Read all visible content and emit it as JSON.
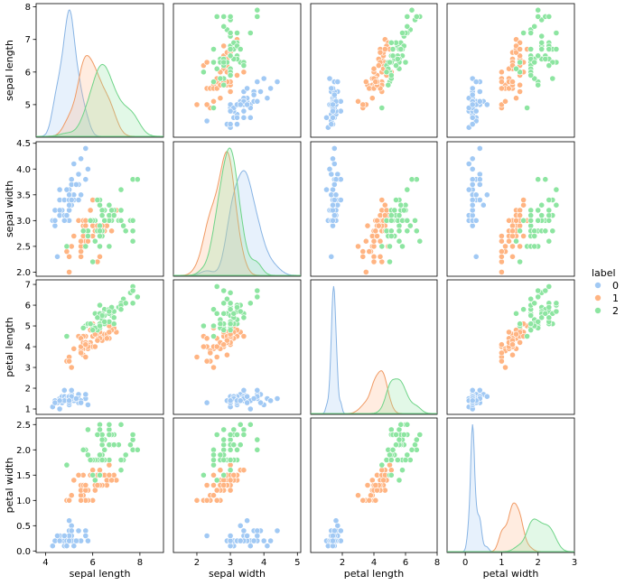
{
  "chart_data": {
    "type": "scatter",
    "title": "",
    "variables": [
      "sepal length",
      "sepal width",
      "petal length",
      "petal width"
    ],
    "diagonal": "kde",
    "legend": {
      "title": "label",
      "placement": "right-center",
      "entries": [
        {
          "name": "0",
          "color": "#a1c9f4"
        },
        {
          "name": "1",
          "color": "#ffb482"
        },
        {
          "name": "2",
          "color": "#8de5a1"
        }
      ]
    },
    "axes": {
      "sepal length": {
        "range": [
          3.6,
          9.0
        ],
        "ticks": [
          4,
          6,
          8
        ],
        "row_range": [
          4.0,
          8.1
        ],
        "row_ticks": [
          5,
          6,
          7,
          8
        ]
      },
      "sepal width": {
        "range": [
          1.3,
          5.1
        ],
        "ticks": [
          2,
          3,
          4,
          5
        ],
        "row_range": [
          1.92,
          4.53
        ],
        "row_ticks": [
          "2.0",
          "2.5",
          "3.0",
          "3.5",
          "4.0",
          "4.5"
        ]
      },
      "petal length": {
        "range": [
          0.0,
          8.0
        ],
        "ticks": [
          2,
          4,
          6,
          8
        ],
        "row_range": [
          0.74,
          7.22
        ],
        "row_ticks": [
          1,
          2,
          3,
          4,
          5,
          6,
          7
        ]
      },
      "petal width": {
        "range": [
          -0.5,
          3.0
        ],
        "ticks": [
          0,
          1,
          2,
          3
        ],
        "row_range": [
          -0.03,
          2.63
        ],
        "row_ticks": [
          "0.0",
          "0.5",
          "1.0",
          "1.5",
          "2.0",
          "2.5"
        ]
      }
    },
    "series": [
      {
        "name": "0",
        "sepal_length": [
          5.1,
          4.9,
          4.7,
          4.6,
          5.0,
          5.4,
          4.6,
          5.0,
          4.4,
          4.9,
          5.4,
          4.8,
          4.8,
          4.3,
          5.8,
          5.7,
          5.4,
          5.1,
          5.7,
          5.1,
          5.4,
          5.1,
          4.6,
          5.1,
          4.8,
          5.0,
          5.0,
          5.2,
          5.2,
          4.7,
          4.8,
          5.4,
          5.2,
          5.5,
          4.9,
          5.0,
          5.5,
          4.9,
          4.4,
          5.1,
          5.0,
          4.5,
          4.4,
          5.0,
          5.1,
          4.8,
          5.1,
          4.6,
          5.3,
          5.0
        ],
        "sepal_width": [
          3.5,
          3.0,
          3.2,
          3.1,
          3.6,
          3.9,
          3.4,
          3.4,
          2.9,
          3.1,
          3.7,
          3.4,
          3.0,
          3.0,
          4.0,
          4.4,
          3.9,
          3.5,
          3.8,
          3.8,
          3.4,
          3.7,
          3.6,
          3.3,
          3.4,
          3.0,
          3.4,
          3.5,
          3.4,
          3.2,
          3.1,
          3.4,
          4.1,
          4.2,
          3.1,
          3.2,
          3.5,
          3.6,
          3.0,
          3.4,
          3.5,
          2.3,
          3.2,
          3.5,
          3.8,
          3.0,
          3.8,
          3.2,
          3.7,
          3.3
        ],
        "petal_length": [
          1.4,
          1.4,
          1.3,
          1.5,
          1.4,
          1.7,
          1.4,
          1.5,
          1.4,
          1.5,
          1.5,
          1.6,
          1.4,
          1.1,
          1.2,
          1.5,
          1.3,
          1.4,
          1.7,
          1.5,
          1.7,
          1.5,
          1.0,
          1.7,
          1.9,
          1.6,
          1.6,
          1.5,
          1.4,
          1.6,
          1.6,
          1.5,
          1.5,
          1.4,
          1.5,
          1.2,
          1.3,
          1.4,
          1.3,
          1.5,
          1.3,
          1.3,
          1.3,
          1.6,
          1.9,
          1.4,
          1.6,
          1.4,
          1.5,
          1.4
        ],
        "petal_width": [
          0.2,
          0.2,
          0.2,
          0.2,
          0.2,
          0.4,
          0.3,
          0.2,
          0.2,
          0.1,
          0.2,
          0.2,
          0.1,
          0.1,
          0.2,
          0.4,
          0.4,
          0.3,
          0.3,
          0.3,
          0.2,
          0.4,
          0.2,
          0.5,
          0.2,
          0.2,
          0.4,
          0.2,
          0.2,
          0.2,
          0.2,
          0.4,
          0.1,
          0.2,
          0.2,
          0.2,
          0.2,
          0.1,
          0.2,
          0.2,
          0.3,
          0.3,
          0.2,
          0.6,
          0.4,
          0.3,
          0.2,
          0.2,
          0.2,
          0.2
        ]
      },
      {
        "name": "1",
        "sepal_length": [
          7.0,
          6.4,
          6.9,
          5.5,
          6.5,
          5.7,
          6.3,
          4.9,
          6.6,
          5.2,
          5.0,
          5.9,
          6.0,
          6.1,
          5.6,
          6.7,
          5.6,
          5.8,
          6.2,
          5.6,
          5.9,
          6.1,
          6.3,
          6.1,
          6.4,
          6.6,
          6.8,
          6.7,
          6.0,
          5.7,
          5.5,
          5.5,
          5.8,
          6.0,
          5.4,
          6.0,
          6.7,
          6.3,
          5.6,
          5.5,
          5.5,
          6.1,
          5.8,
          5.0,
          5.6,
          5.7,
          5.7,
          6.2,
          5.1,
          5.7
        ],
        "sepal_width": [
          3.2,
          3.2,
          3.1,
          2.3,
          2.8,
          2.8,
          3.3,
          2.4,
          2.9,
          2.7,
          2.0,
          3.0,
          2.2,
          2.9,
          2.9,
          3.1,
          3.0,
          2.7,
          2.2,
          2.5,
          3.2,
          2.8,
          2.5,
          2.8,
          2.9,
          3.0,
          2.8,
          3.0,
          2.9,
          2.6,
          2.4,
          2.4,
          2.7,
          2.7,
          3.0,
          3.4,
          3.1,
          2.3,
          3.0,
          2.5,
          2.6,
          3.0,
          2.6,
          2.3,
          2.7,
          3.0,
          2.9,
          2.9,
          2.5,
          2.8
        ],
        "petal_length": [
          4.7,
          4.5,
          4.9,
          4.0,
          4.6,
          4.5,
          4.7,
          3.3,
          4.6,
          3.9,
          3.5,
          4.2,
          4.0,
          4.7,
          3.6,
          4.4,
          4.5,
          4.1,
          4.5,
          3.9,
          4.8,
          4.0,
          4.9,
          4.7,
          4.3,
          4.4,
          4.8,
          5.0,
          4.5,
          3.5,
          3.8,
          3.7,
          3.9,
          5.1,
          4.5,
          4.5,
          4.7,
          4.4,
          4.1,
          4.0,
          4.4,
          4.6,
          4.0,
          3.3,
          4.2,
          4.2,
          4.2,
          4.3,
          3.0,
          4.1
        ],
        "petal_width": [
          1.4,
          1.5,
          1.5,
          1.3,
          1.5,
          1.3,
          1.6,
          1.0,
          1.3,
          1.4,
          1.0,
          1.5,
          1.0,
          1.4,
          1.3,
          1.4,
          1.5,
          1.0,
          1.5,
          1.1,
          1.8,
          1.3,
          1.5,
          1.2,
          1.3,
          1.4,
          1.4,
          1.7,
          1.5,
          1.0,
          1.1,
          1.0,
          1.2,
          1.6,
          1.5,
          1.6,
          1.5,
          1.3,
          1.3,
          1.3,
          1.2,
          1.4,
          1.2,
          1.0,
          1.3,
          1.2,
          1.3,
          1.3,
          1.1,
          1.3
        ]
      },
      {
        "name": "2",
        "sepal_length": [
          6.3,
          5.8,
          7.1,
          6.3,
          6.5,
          7.6,
          4.9,
          7.3,
          6.7,
          7.2,
          6.5,
          6.4,
          6.8,
          5.7,
          5.8,
          6.4,
          6.5,
          7.7,
          7.7,
          6.0,
          6.9,
          5.6,
          7.7,
          6.3,
          6.7,
          7.2,
          6.2,
          6.1,
          6.4,
          7.2,
          7.4,
          7.9,
          6.4,
          6.3,
          6.1,
          7.7,
          6.3,
          6.4,
          6.0,
          6.9,
          6.7,
          6.9,
          5.8,
          6.8,
          6.7,
          6.7,
          6.3,
          6.5,
          6.2,
          5.9
        ],
        "sepal_width": [
          3.3,
          2.7,
          3.0,
          2.9,
          3.0,
          3.0,
          2.5,
          2.9,
          2.5,
          3.6,
          3.2,
          2.7,
          3.0,
          2.5,
          2.8,
          3.2,
          3.0,
          3.8,
          2.6,
          2.2,
          3.2,
          2.8,
          2.8,
          2.7,
          3.3,
          3.2,
          2.8,
          3.0,
          2.8,
          3.0,
          2.8,
          3.8,
          2.8,
          2.8,
          2.6,
          3.0,
          3.4,
          3.1,
          3.0,
          3.1,
          3.1,
          3.1,
          2.7,
          3.2,
          3.3,
          3.0,
          2.5,
          3.0,
          3.4,
          3.0
        ],
        "petal_length": [
          6.0,
          5.1,
          5.9,
          5.6,
          5.8,
          6.6,
          4.5,
          6.3,
          5.8,
          6.1,
          5.1,
          5.3,
          5.5,
          5.0,
          5.1,
          5.3,
          5.5,
          6.7,
          6.9,
          5.0,
          5.7,
          4.9,
          6.7,
          4.9,
          5.7,
          6.0,
          4.8,
          4.9,
          5.6,
          5.8,
          6.1,
          6.4,
          5.6,
          5.1,
          5.6,
          6.1,
          5.6,
          5.5,
          4.8,
          5.4,
          5.6,
          5.1,
          5.1,
          5.9,
          5.7,
          5.2,
          5.0,
          5.2,
          5.4,
          5.1
        ],
        "petal_width": [
          2.5,
          1.9,
          2.1,
          1.8,
          2.2,
          2.1,
          1.7,
          1.8,
          1.8,
          2.5,
          2.0,
          1.9,
          2.1,
          2.0,
          2.4,
          2.3,
          1.8,
          2.2,
          2.3,
          1.5,
          2.3,
          2.0,
          2.0,
          1.8,
          2.1,
          1.8,
          1.8,
          1.8,
          2.1,
          1.6,
          1.9,
          2.0,
          2.2,
          1.5,
          1.4,
          2.3,
          2.4,
          1.8,
          1.8,
          2.1,
          2.4,
          2.3,
          1.9,
          2.3,
          2.5,
          2.3,
          1.9,
          2.0,
          2.3,
          1.8
        ]
      }
    ]
  }
}
